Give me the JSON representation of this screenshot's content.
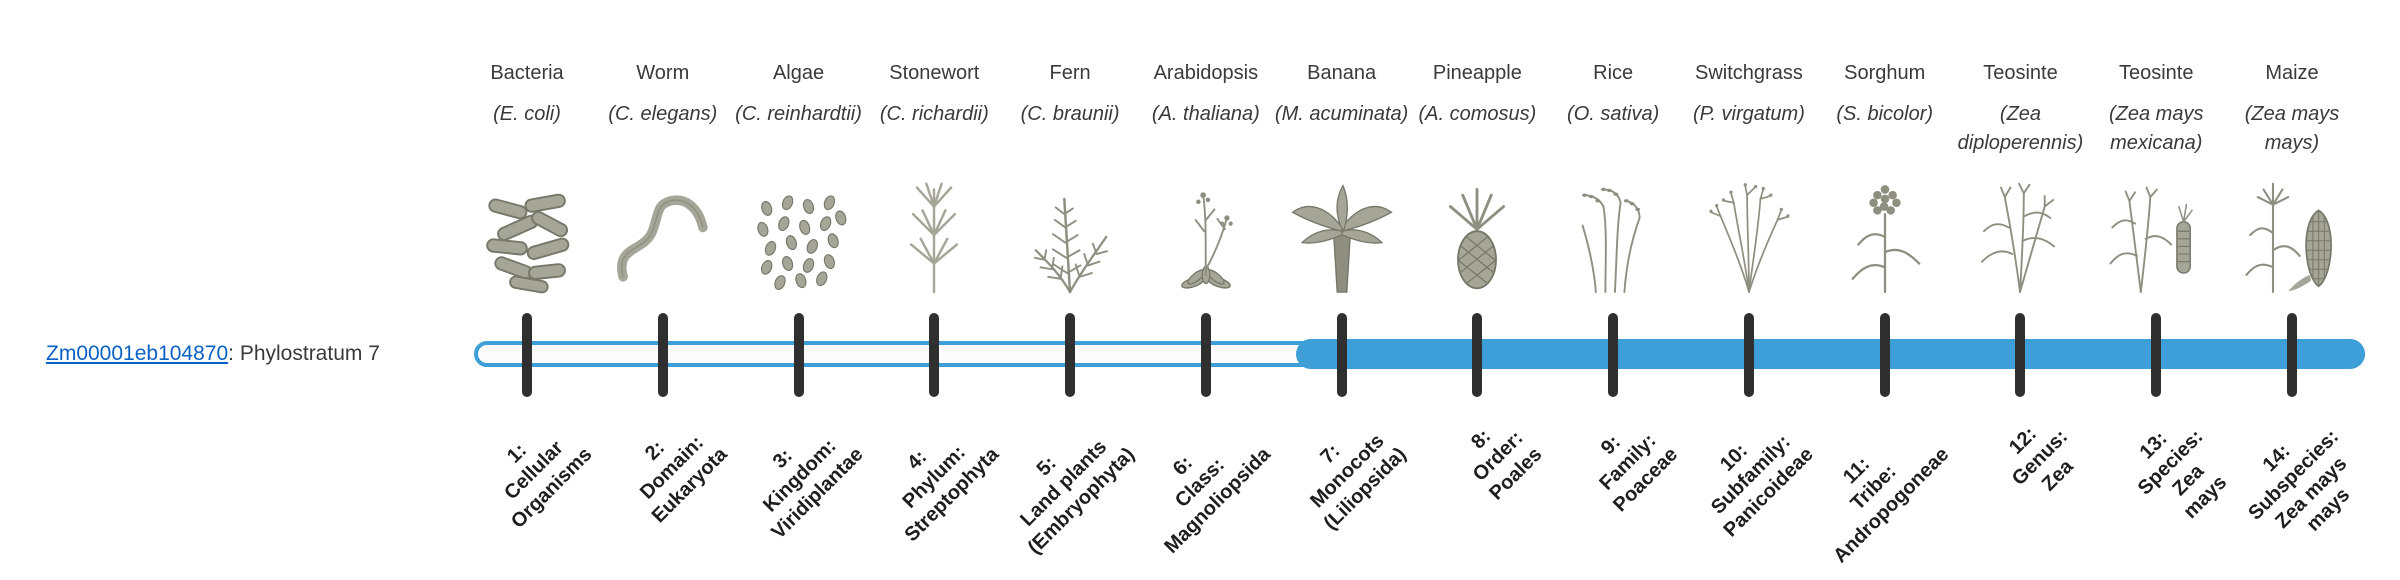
{
  "gene": {
    "id": "Zm00001eb104870",
    "label_suffix": ": Phylostratum 7",
    "link_color": "#0b61c4"
  },
  "timeline": {
    "accent_color": "#3d9ed8",
    "tick_color": "#2f2f2f",
    "total_strata": 14,
    "fill_start_index": 6
  },
  "strata": [
    {
      "index": 1,
      "name": "Bacteria",
      "scientific_name": "(E. coli)",
      "icon": "bacteria-icon",
      "label": "1:\nCellular\nOrganisms",
      "in_filled_range": false
    },
    {
      "index": 2,
      "name": "Worm",
      "scientific_name": "(C. elegans)",
      "icon": "worm-icon",
      "label": "2:\nDomain:\nEukaryota",
      "in_filled_range": false
    },
    {
      "index": 3,
      "name": "Algae",
      "scientific_name": "(C. reinhardtii)",
      "icon": "algae-icon",
      "label": "3:\nKingdom:\nViridiplantae",
      "in_filled_range": false
    },
    {
      "index": 4,
      "name": "Stonewort",
      "scientific_name": "(C. richardii)",
      "icon": "stonewort-icon",
      "label": "4:\nPhylum:\nStreptophyta",
      "in_filled_range": false
    },
    {
      "index": 5,
      "name": "Fern",
      "scientific_name": "(C. braunii)",
      "icon": "fern-icon",
      "label": "5:\nLand plants\n(Embryophyta)",
      "in_filled_range": false
    },
    {
      "index": 6,
      "name": "Arabidopsis",
      "scientific_name": "(A. thaliana)",
      "icon": "arabidopsis-icon",
      "label": "6:\nClass:\nMagnoliopsida",
      "in_filled_range": false
    },
    {
      "index": 7,
      "name": "Banana",
      "scientific_name": "(M. acuminata)",
      "icon": "banana-icon",
      "label": "7:\nMonocots\n(Liliopsida)",
      "in_filled_range": true
    },
    {
      "index": 8,
      "name": "Pineapple",
      "scientific_name": "(A. comosus)",
      "icon": "pineapple-icon",
      "label": "8:\nOrder:\nPoales",
      "in_filled_range": true
    },
    {
      "index": 9,
      "name": "Rice",
      "scientific_name": "(O. sativa)",
      "icon": "rice-icon",
      "label": "9:\nFamily:\nPoaceae",
      "in_filled_range": true
    },
    {
      "index": 10,
      "name": "Switchgrass",
      "scientific_name": "(P. virgatum)",
      "icon": "switchgrass-icon",
      "label": "10:\nSubfamily:\nPanicoideae",
      "in_filled_range": true
    },
    {
      "index": 11,
      "name": "Sorghum",
      "scientific_name": "(S. bicolor)",
      "icon": "sorghum-icon",
      "label": "11:\nTribe:\nAndropogoneae",
      "in_filled_range": true
    },
    {
      "index": 12,
      "name": "Teosinte",
      "scientific_name": "(Zea diploperennis)",
      "icon": "teosinte-icon",
      "label": "12:\nGenus:\nZea",
      "in_filled_range": true
    },
    {
      "index": 13,
      "name": "Teosinte",
      "scientific_name": "(Zea mays mexicana)",
      "icon": "teosinte-ear-icon",
      "label": "13:\nSpecies:\nZea\nmays",
      "in_filled_range": true
    },
    {
      "index": 14,
      "name": "Maize",
      "scientific_name": "(Zea mays mays)",
      "icon": "maize-icon",
      "label": "14:\nSubspecies:\nZea mays\nmays",
      "in_filled_range": true
    }
  ]
}
